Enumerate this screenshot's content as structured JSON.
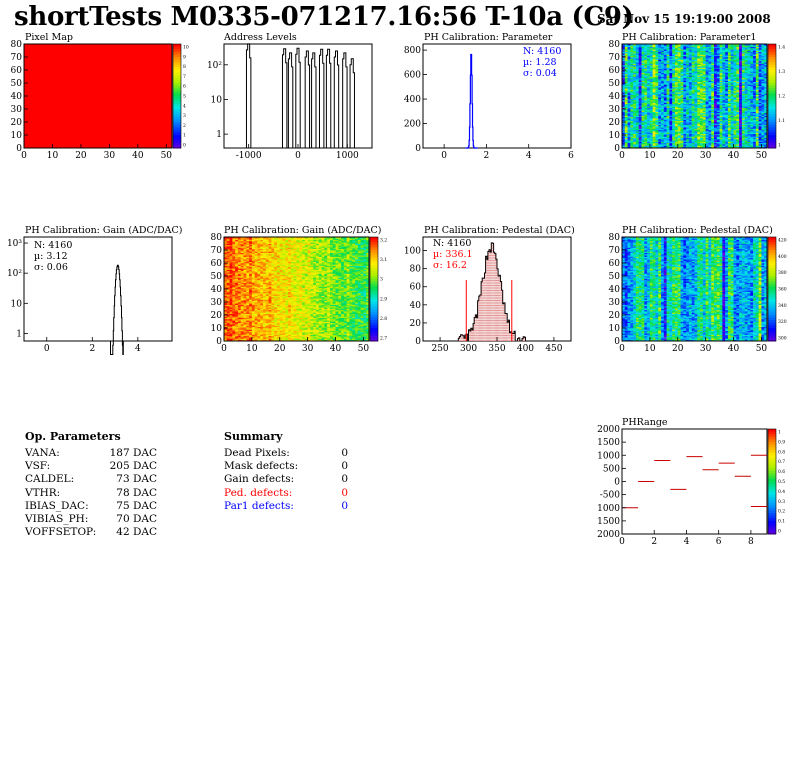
{
  "header": {
    "title": "shortTests M0335-071217.16:56 T-10a (C9)",
    "date": "Sat Nov 15 19:19:00 2008"
  },
  "colors": {
    "red": "#ff0000",
    "blue": "#0000ff",
    "black": "#000000"
  },
  "chart_data": [
    {
      "id": "pixel-map",
      "type": "heatmap",
      "title": "Pixel Map",
      "xlim": [
        0,
        52
      ],
      "ylim": [
        0,
        80
      ],
      "xticks": [
        "0",
        "10",
        "20",
        "30",
        "40",
        "50"
      ],
      "yticks": [
        "0",
        "10",
        "20",
        "30",
        "40",
        "50",
        "60",
        "70",
        "80"
      ],
      "fill_value": 10,
      "zlim": [
        0,
        10
      ],
      "zticks": [
        "10",
        "9",
        "8",
        "7",
        "6",
        "5",
        "4",
        "3",
        "2",
        "1",
        "0"
      ]
    },
    {
      "id": "address-levels",
      "type": "bar",
      "title": "Address Levels",
      "xlim": [
        -1500,
        1500
      ],
      "log_y": true,
      "xticks": [
        "-1000",
        "0",
        "1000"
      ],
      "yticks": [
        "1",
        "10",
        "10²"
      ],
      "peaks": [
        {
          "x": -1000,
          "y": 400
        },
        {
          "x": -270,
          "y": 290
        },
        {
          "x": -150,
          "y": 220
        },
        {
          "x": 0,
          "y": 300
        },
        {
          "x": 190,
          "y": 250
        },
        {
          "x": 320,
          "y": 220
        },
        {
          "x": 480,
          "y": 280
        },
        {
          "x": 620,
          "y": 280
        },
        {
          "x": 780,
          "y": 250
        },
        {
          "x": 950,
          "y": 220
        },
        {
          "x": 1100,
          "y": 150
        }
      ]
    },
    {
      "id": "ph-cal-parameter",
      "type": "bar",
      "title": "PH Calibration: Parameter",
      "xlim": [
        -1,
        6
      ],
      "ylim": [
        0,
        850
      ],
      "xticks": [
        "0",
        "2",
        "4",
        "6"
      ],
      "yticks": [
        "0",
        "200",
        "400",
        "600",
        "800"
      ],
      "stats": [
        "N: 4160",
        "µ: 1.28",
        "σ: 0.04"
      ],
      "mean": 1.28,
      "sigma": 0.04,
      "entries": 4160
    },
    {
      "id": "ph-cal-parameter1",
      "type": "heatmap",
      "title": "PH Calibration: Parameter1",
      "xlim": [
        0,
        52
      ],
      "ylim": [
        0,
        80
      ],
      "xticks": [
        "0",
        "10",
        "20",
        "30",
        "40",
        "50"
      ],
      "yticks": [
        "0",
        "10",
        "20",
        "30",
        "40",
        "50",
        "60",
        "70",
        "80"
      ],
      "zticks": [
        "1.4",
        "1.3",
        "1.2",
        "1.1",
        "1"
      ]
    },
    {
      "id": "ph-cal-gain-1d",
      "type": "bar",
      "title": "PH Calibration: Gain (ADC/DAC)",
      "xlim": [
        -1,
        5.5
      ],
      "log_y": true,
      "xticks": [
        "0",
        "2",
        "4"
      ],
      "yticks": [
        "1",
        "10",
        "10²",
        "10³"
      ],
      "stats": [
        "N: 4160",
        "µ: 3.12",
        "σ: 0.06"
      ],
      "mean": 3.12,
      "sigma": 0.06,
      "entries": 4160
    },
    {
      "id": "ph-cal-gain-map",
      "type": "heatmap",
      "title": "PH Calibration: Gain (ADC/DAC)",
      "xlim": [
        0,
        52
      ],
      "ylim": [
        0,
        80
      ],
      "xticks": [
        "0",
        "10",
        "20",
        "30",
        "40",
        "50"
      ],
      "yticks": [
        "0",
        "10",
        "20",
        "30",
        "40",
        "50",
        "60",
        "70",
        "80"
      ],
      "zticks": [
        "3.2",
        "3.1",
        "3",
        "2.9",
        "2.8",
        "2.7"
      ]
    },
    {
      "id": "ph-cal-pedestal-1d",
      "type": "bar",
      "title": "PH Calibration: Pedestal (DAC)",
      "xlim": [
        220,
        480
      ],
      "ylim": [
        0,
        115
      ],
      "xticks": [
        "250",
        "300",
        "350",
        "400",
        "450"
      ],
      "yticks": [
        "0",
        "20",
        "40",
        "60",
        "80",
        "100"
      ],
      "stats": [
        "N: 4160",
        "µ: 336.1",
        "σ: 16.2"
      ],
      "mean": 336.1,
      "sigma": 16.2,
      "entries": 4160,
      "cuts": [
        296,
        376
      ]
    },
    {
      "id": "ph-cal-pedestal-map",
      "type": "heatmap",
      "title": "PH Calibration: Pedestal (DAC)",
      "xlim": [
        0,
        52
      ],
      "ylim": [
        0,
        80
      ],
      "xticks": [
        "0",
        "10",
        "20",
        "30",
        "40",
        "50"
      ],
      "yticks": [
        "0",
        "10",
        "20",
        "30",
        "40",
        "50",
        "60",
        "70",
        "80"
      ],
      "zticks": [
        "420",
        "400",
        "380",
        "360",
        "340",
        "320",
        "300"
      ]
    },
    {
      "id": "phrange",
      "type": "scatter",
      "title": "PHRange",
      "xlim": [
        0,
        9
      ],
      "ylim": [
        -2000,
        2000
      ],
      "xticks": [
        "0",
        "2",
        "4",
        "6",
        "8"
      ],
      "yticks": [
        "2000",
        "1500",
        "1000",
        "500",
        "0",
        "-500",
        "1000",
        "1500",
        "2000"
      ],
      "segments": [
        {
          "x": 0.5,
          "y": -1000
        },
        {
          "x": 1.5,
          "y": 0
        },
        {
          "x": 2.5,
          "y": 800
        },
        {
          "x": 3.5,
          "y": -300
        },
        {
          "x": 4.5,
          "y": 950
        },
        {
          "x": 5.5,
          "y": 450
        },
        {
          "x": 6.5,
          "y": 700
        },
        {
          "x": 7.5,
          "y": 200
        },
        {
          "x": 8.5,
          "y": -950
        },
        {
          "x": 8.5,
          "y": 1000
        }
      ],
      "zticks": [
        "1",
        "0.9",
        "0.8",
        "0.7",
        "0.6",
        "0.5",
        "0.4",
        "0.3",
        "0.2",
        "0.1",
        "0"
      ]
    }
  ],
  "op_params": {
    "title": "Op. Parameters",
    "rows": [
      {
        "name": "VANA:",
        "value": "187 DAC"
      },
      {
        "name": "VSF:",
        "value": "205 DAC"
      },
      {
        "name": "CALDEL:",
        "value": "73 DAC"
      },
      {
        "name": "VTHR:",
        "value": "78 DAC"
      },
      {
        "name": "IBIAS_DAC:",
        "value": "75 DAC"
      },
      {
        "name": "VIBIAS_PH:",
        "value": "70 DAC"
      },
      {
        "name": "VOFFSETOP:",
        "value": "42 DAC"
      }
    ]
  },
  "summary": {
    "title": "Summary",
    "rows": [
      {
        "name": "Dead Pixels:",
        "value": "0",
        "color": "#000000"
      },
      {
        "name": "Mask defects:",
        "value": "0",
        "color": "#000000"
      },
      {
        "name": "Gain defects:",
        "value": "0",
        "color": "#000000"
      },
      {
        "name": "Ped. defects:",
        "value": "0",
        "color": "#ff0000"
      },
      {
        "name": "Par1 defects:",
        "value": "0",
        "color": "#0000ff"
      }
    ]
  }
}
